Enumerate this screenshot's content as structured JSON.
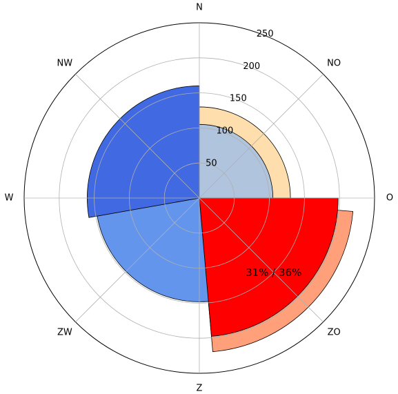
{
  "chart_data": {
    "type": "polar-bar",
    "title": "",
    "directions": [
      "N",
      "NO",
      "O",
      "ZO",
      "Z",
      "ZW",
      "W",
      "NW"
    ],
    "r_ticks": [
      50,
      100,
      150,
      200,
      250
    ],
    "r_max": 250,
    "grid": true,
    "sectors": [
      {
        "name": "NO-outer",
        "from_deg": 0,
        "to_deg": 90,
        "value": 130,
        "color": "#ffdead"
      },
      {
        "name": "NO-inner",
        "from_deg": 0,
        "to_deg": 90,
        "value": 105,
        "color": "#b0c4de"
      },
      {
        "name": "ZO-outer",
        "from_deg": 95,
        "to_deg": 175,
        "value": 220,
        "color": "#ffa07a"
      },
      {
        "name": "ZO-inner",
        "from_deg": 90,
        "to_deg": 175,
        "value": 198,
        "color": "#ff0000"
      },
      {
        "name": "ZW",
        "from_deg": 175,
        "to_deg": 260,
        "value": 148,
        "color": "#6495ed"
      },
      {
        "name": "NW",
        "from_deg": 260,
        "to_deg": 360,
        "value": 160,
        "color": "#4169e1"
      }
    ],
    "annotation": {
      "text": "31% / 36%",
      "angle_deg": 135,
      "radius": 150
    }
  }
}
